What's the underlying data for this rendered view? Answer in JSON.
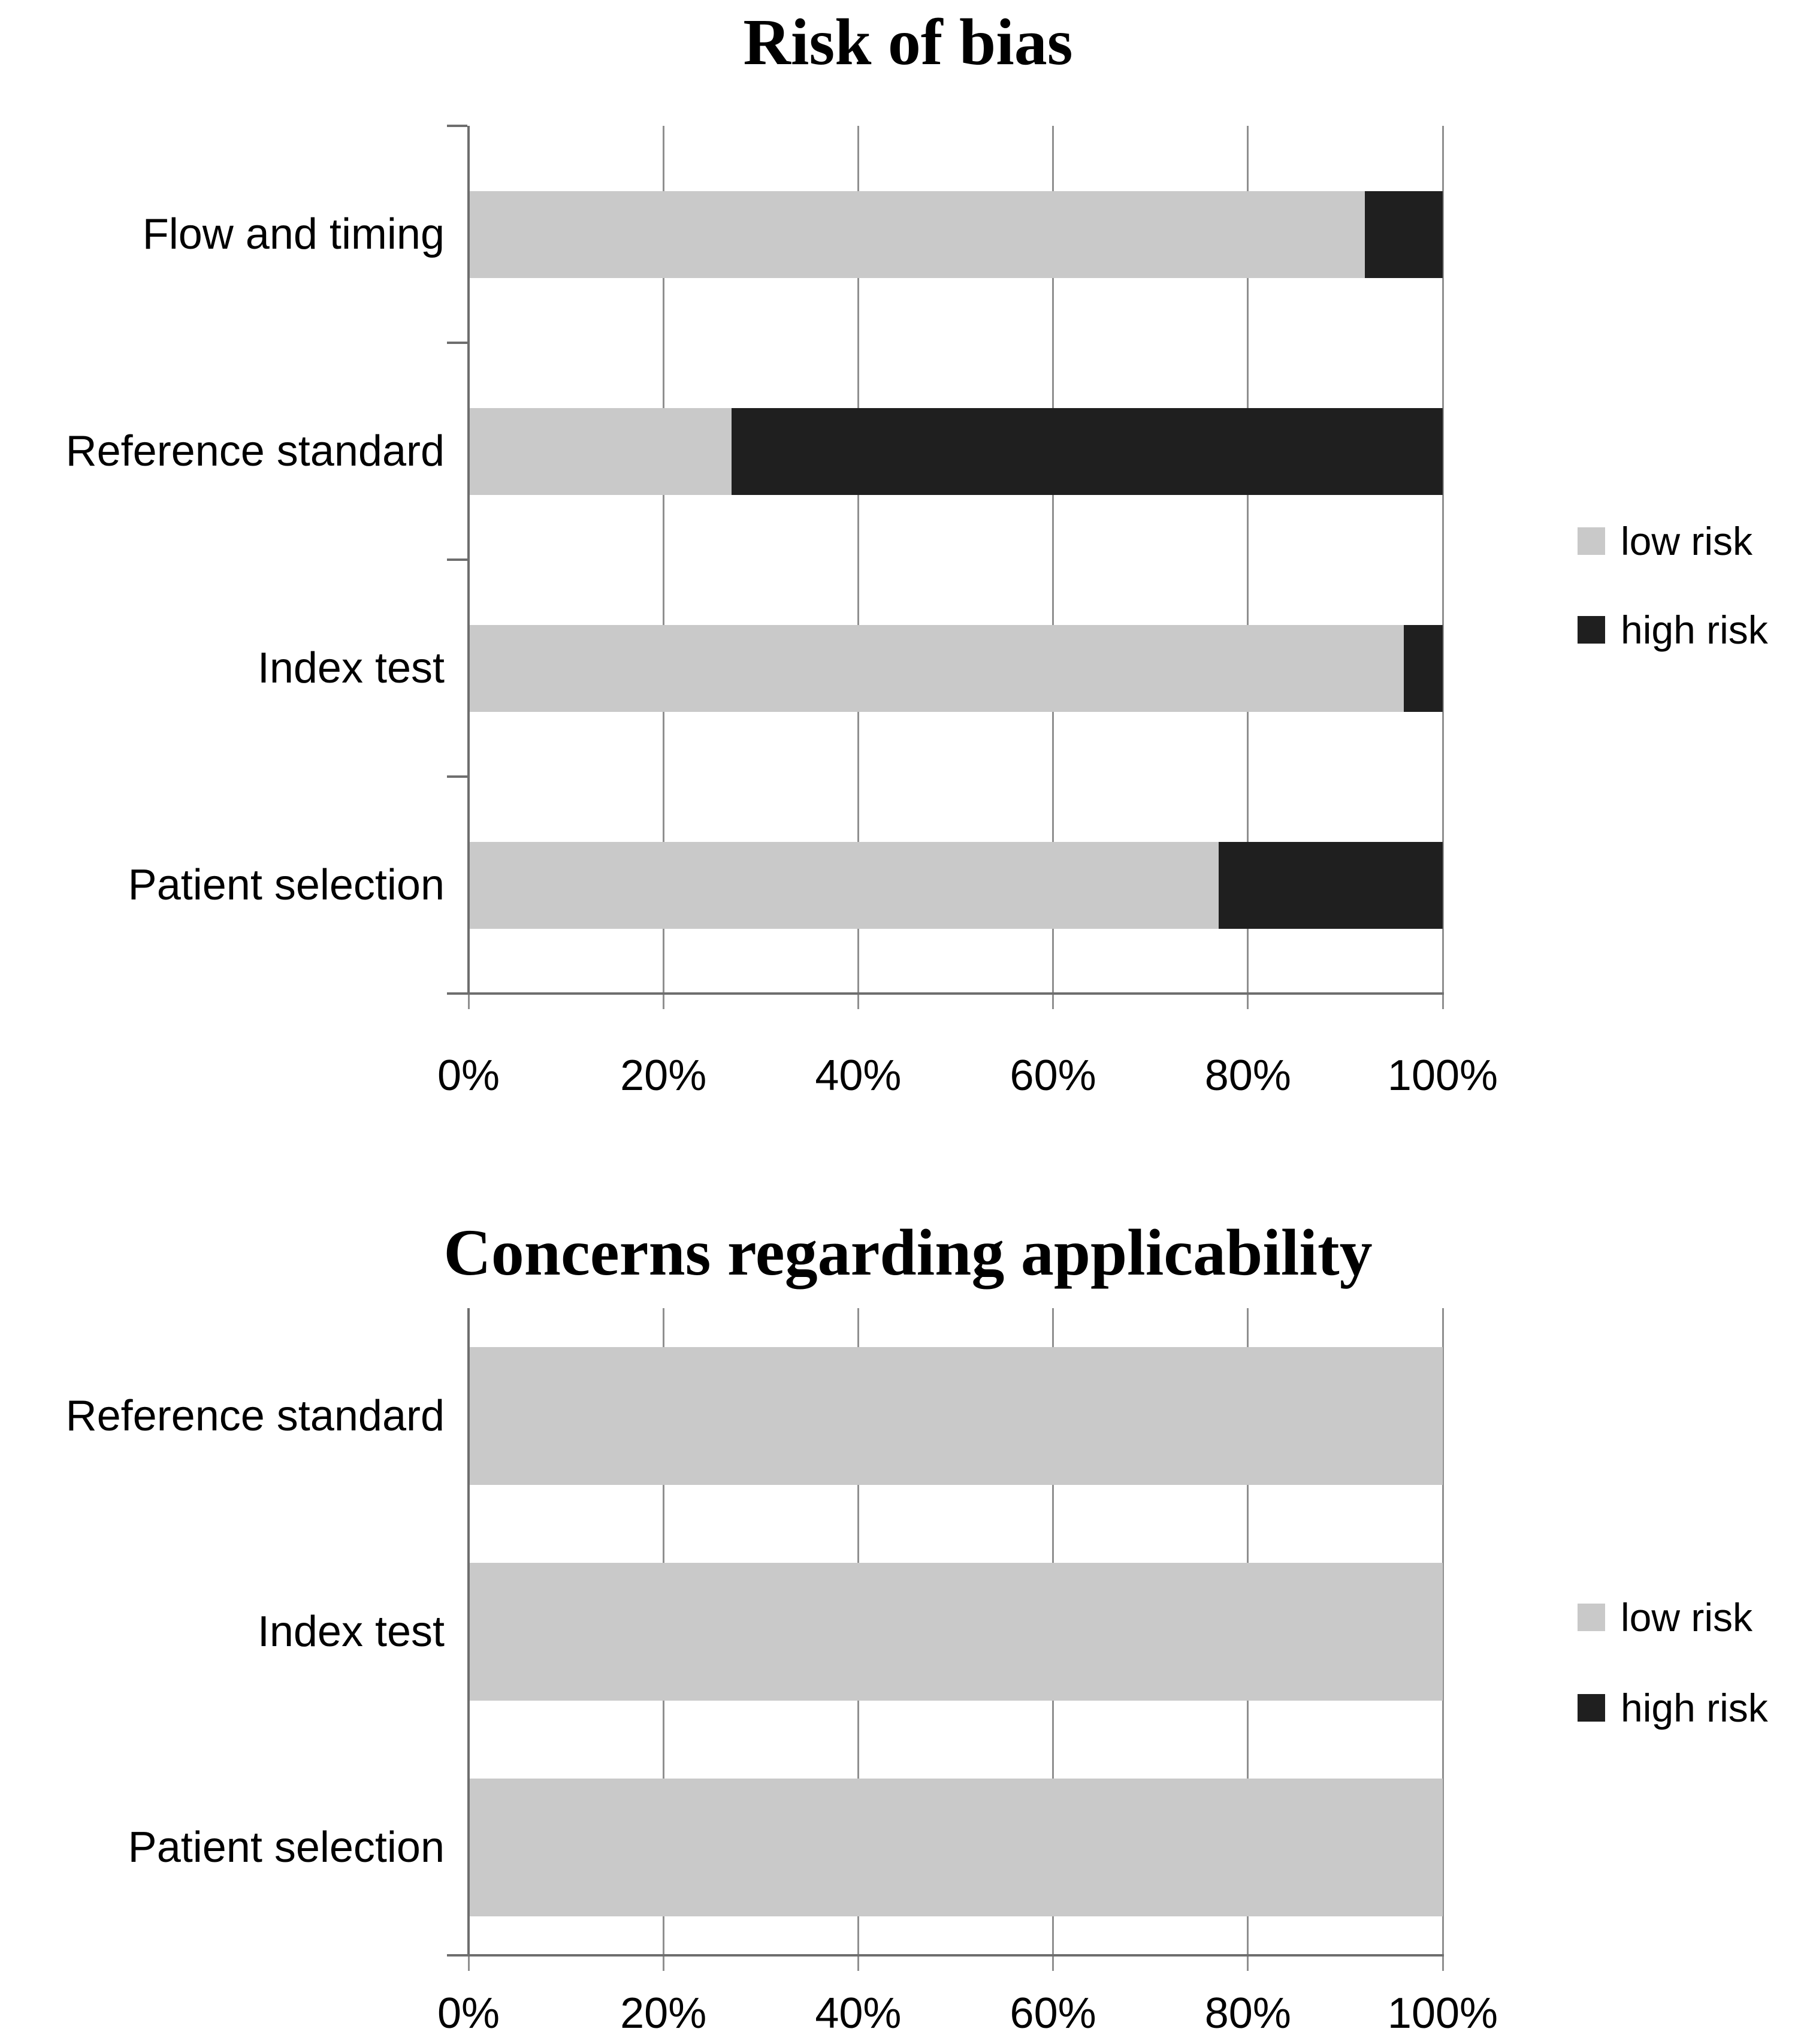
{
  "style": {
    "background": "#ffffff",
    "axis_color": "#6e6e6e",
    "grid_color": "#8f8f8f",
    "text_color": "#000000",
    "low_risk_color": "#c9c9c9",
    "high_risk_color": "#1f1f1f"
  },
  "chart_data": [
    {
      "type": "bar",
      "orientation": "horizontal",
      "stacked": true,
      "title": "Risk of bias",
      "categories_note": "listed top to bottom",
      "categories": [
        "Flow and timing",
        "Reference standard",
        "Index test",
        "Patient selection"
      ],
      "series": [
        {
          "name": "low risk",
          "color": "#c9c9c9",
          "values": [
            92,
            27,
            96,
            77
          ]
        },
        {
          "name": "high risk",
          "color": "#1f1f1f",
          "values": [
            8,
            73,
            4,
            23
          ]
        }
      ],
      "xlim": [
        0,
        100
      ],
      "x_tick_labels": [
        "0%",
        "20%",
        "40%",
        "60%",
        "80%",
        "100%"
      ],
      "grid": true,
      "legend_position": "right"
    },
    {
      "type": "bar",
      "orientation": "horizontal",
      "stacked": true,
      "title": "Concerns regarding applicability",
      "categories_note": "listed top to bottom",
      "categories": [
        "Reference standard",
        "Index test",
        "Patient selection"
      ],
      "series": [
        {
          "name": "low risk",
          "color": "#c9c9c9",
          "values": [
            100,
            100,
            100
          ]
        },
        {
          "name": "high risk",
          "color": "#1f1f1f",
          "values": [
            0,
            0,
            0
          ]
        }
      ],
      "xlim": [
        0,
        100
      ],
      "x_tick_labels": [
        "0%",
        "20%",
        "40%",
        "60%",
        "80%",
        "100%"
      ],
      "grid": true,
      "legend_position": "right"
    }
  ]
}
